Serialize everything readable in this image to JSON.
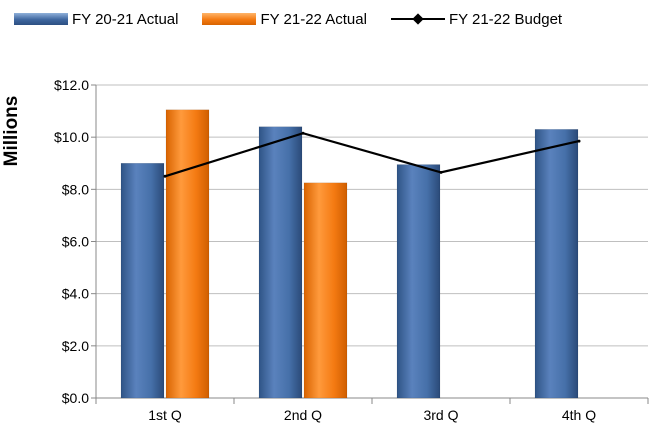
{
  "legend": {
    "series0": "FY 20-21 Actual",
    "series1": "FY 21-22 Actual",
    "series2": "FY 21-22 Budget"
  },
  "chart_data": {
    "type": "bar",
    "title": "",
    "xlabel": "",
    "ylabel": "Millions",
    "ylim": [
      0,
      12
    ],
    "yticks": [
      "$0.0",
      "$2.0",
      "$4.0",
      "$6.0",
      "$8.0",
      "$10.0",
      "$12.0"
    ],
    "categories": [
      "1st Q",
      "2nd Q",
      "3rd Q",
      "4th Q"
    ],
    "grid": true,
    "legend_position": "top",
    "series": [
      {
        "name": "FY 20-21 Actual",
        "type": "bar",
        "color": "#3f679f",
        "values": [
          9.0,
          10.4,
          8.95,
          10.3
        ]
      },
      {
        "name": "FY 21-22 Actual",
        "type": "bar",
        "color": "#f47a12",
        "values": [
          11.05,
          8.25,
          null,
          null
        ]
      },
      {
        "name": "FY 21-22 Budget",
        "type": "line",
        "color": "#000000",
        "values": [
          8.5,
          10.15,
          8.65,
          9.85
        ]
      }
    ]
  }
}
